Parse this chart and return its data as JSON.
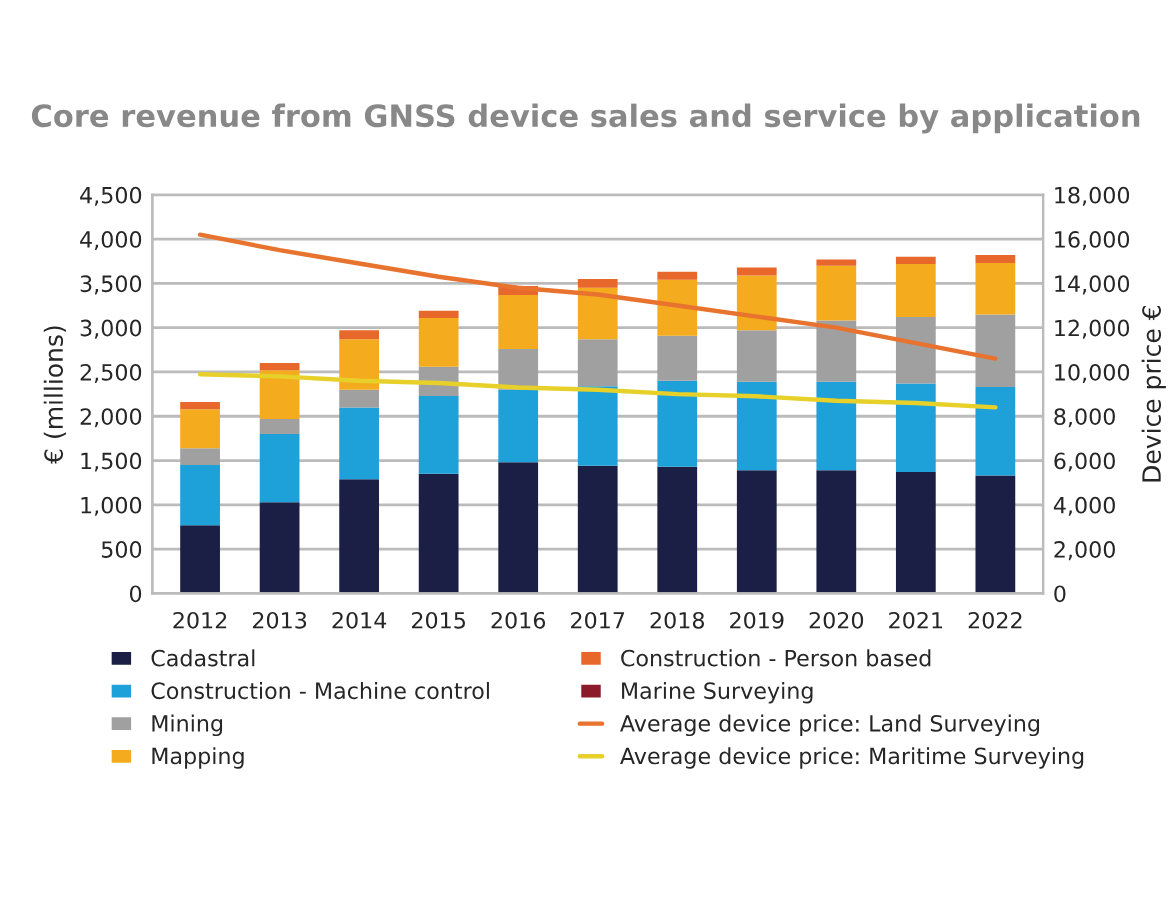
{
  "chart_data": {
    "type": "bar",
    "stacked": true,
    "title": "Core revenue from GNSS device sales and service by application",
    "ylabel": "€ (millions)",
    "y2label": "Device price €",
    "categories": [
      "2012",
      "2013",
      "2014",
      "2015",
      "2016",
      "2017",
      "2018",
      "2019",
      "2020",
      "2021",
      "2022"
    ],
    "series": [
      {
        "name": "Cadastral",
        "color": "#1b1f45",
        "values": [
          770,
          1030,
          1290,
          1350,
          1480,
          1440,
          1430,
          1390,
          1390,
          1370,
          1330
        ]
      },
      {
        "name": "Construction - Machine control",
        "color": "#1ea0d8",
        "values": [
          680,
          770,
          810,
          880,
          820,
          900,
          970,
          1000,
          1000,
          1000,
          1000
        ]
      },
      {
        "name": "Mining",
        "color": "#a0a0a0",
        "values": [
          190,
          170,
          200,
          330,
          460,
          530,
          510,
          580,
          690,
          750,
          820
        ]
      },
      {
        "name": "Mapping",
        "color": "#f5ab1e",
        "values": [
          440,
          550,
          570,
          550,
          610,
          580,
          630,
          620,
          620,
          600,
          580
        ]
      },
      {
        "name": "Construction - Person based",
        "color": "#e8672a",
        "values": [
          80,
          80,
          100,
          80,
          100,
          100,
          90,
          90,
          70,
          80,
          90
        ]
      },
      {
        "name": "Marine Surveying",
        "color": "#8b1a2a",
        "values": [
          null,
          null,
          null,
          null,
          null,
          null,
          null,
          null,
          null,
          null,
          null
        ]
      },
      {
        "name": "Average device price: Land Surveying",
        "type": "line",
        "axis": "y2",
        "color": "#e8732f",
        "values": [
          16200,
          15500,
          14900,
          14300,
          13800,
          13500,
          13000,
          12500,
          12000,
          11300,
          10600
        ]
      },
      {
        "name": "Average device price: Maritime Surveying",
        "type": "line",
        "axis": "y2",
        "color": "#e8d02a",
        "values": [
          9900,
          9800,
          9600,
          9500,
          9300,
          9200,
          9000,
          8900,
          8700,
          8600,
          8400
        ]
      }
    ],
    "ylim": [
      0,
      4500
    ],
    "yticks": [
      {
        "value": 0,
        "label": "0"
      },
      {
        "value": 500,
        "label": "500"
      },
      {
        "value": 1000,
        "label": "1,000"
      },
      {
        "value": 1500,
        "label": "1,500"
      },
      {
        "value": 2000,
        "label": "2,000"
      },
      {
        "value": 2500,
        "label": "2,500"
      },
      {
        "value": 3000,
        "label": "3,000"
      },
      {
        "value": 3500,
        "label": "3,500"
      },
      {
        "value": 4000,
        "label": "4,000"
      },
      {
        "value": 4500,
        "label": "4,500"
      }
    ],
    "y2lim": [
      0,
      18000
    ],
    "y2ticks": [
      {
        "value": 0,
        "label": "0"
      },
      {
        "value": 2000,
        "label": "2,000"
      },
      {
        "value": 4000,
        "label": "4,000"
      },
      {
        "value": 6000,
        "label": "6,000"
      },
      {
        "value": 8000,
        "label": "8,000"
      },
      {
        "value": 10000,
        "label": "10,000"
      },
      {
        "value": 12000,
        "label": "12,000"
      },
      {
        "value": 14000,
        "label": "14,000"
      },
      {
        "value": 16000,
        "label": "16,000"
      },
      {
        "value": 18000,
        "label": "18,000"
      }
    ],
    "grid": "y",
    "legend": "bottom"
  }
}
